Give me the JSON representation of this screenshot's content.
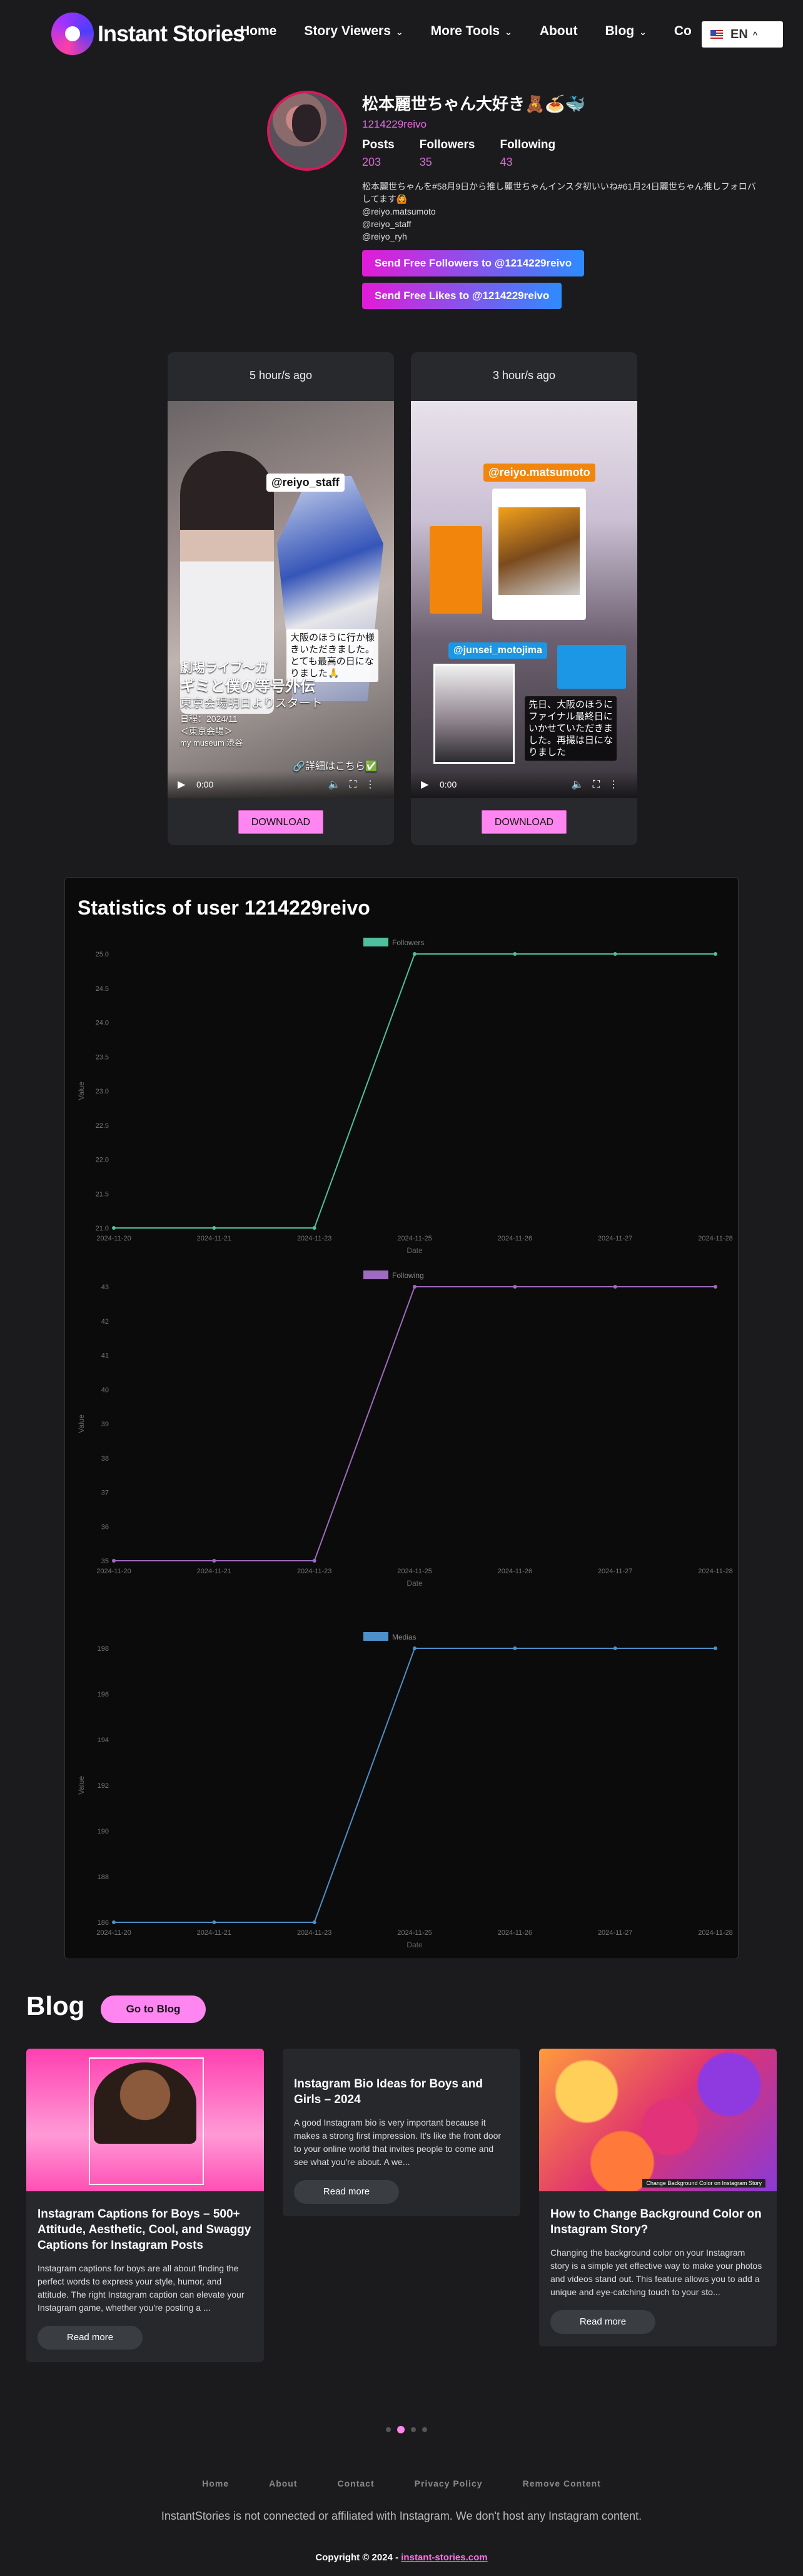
{
  "header": {
    "logo_text": "Instant Stories",
    "nav": [
      {
        "label": "Home",
        "dropdown": false
      },
      {
        "label": "Story Viewers",
        "dropdown": true
      },
      {
        "label": "More Tools",
        "dropdown": true
      },
      {
        "label": "About",
        "dropdown": false
      },
      {
        "label": "Blog",
        "dropdown": true
      },
      {
        "label": "Co",
        "dropdown": false
      }
    ],
    "language": "EN"
  },
  "profile": {
    "name": "松本麗世ちゃん大好き🧸🍝🐳",
    "username": "1214229reivo",
    "posts_label": "Posts",
    "posts": "203",
    "followers_label": "Followers",
    "followers": "35",
    "following_label": "Following",
    "following": "43",
    "bio_lines": [
      "松本麗世ちゃんを#58月9日から推し麗世ちゃんインスタ初いいね#61月24日麗世ちゃん推しフォロバしてます🙆",
      "@reiyo.matsumoto",
      "@reiyo_staff",
      "@reiyo_ryh"
    ],
    "cta_followers": "Send Free Followers to @1214229reivo",
    "cta_likes": "Send Free Likes to @1214229reivo"
  },
  "stories": [
    {
      "time": "5 hour/s ago",
      "tag": "@reiyo_staff",
      "overlay": "大阪のほうに行か様\nきいただきました。\nとても最高の日にな\nりました🙏",
      "caption_1": "劇場ライブ〜ガ",
      "caption_2": "ギミと僕の等号外伝",
      "caption_3": "東京会場明日よりスタート",
      "caption_4": "日程：2024/11",
      "caption_5": "＜東京会場＞",
      "caption_6": "my museum 渋谷",
      "detail_link": "🔗詳細はこちら✅",
      "player_time": "0:00",
      "download": "DOWNLOAD"
    },
    {
      "time": "3 hour/s ago",
      "tag": "@reiyo.matsumoto",
      "tag_2": "@junsei_motojima",
      "overlay": "先日、大阪のほうに\nファイナル最終日に\nいかせていただきま\nした。再撮は日にな\nりました",
      "player_time": "0:00",
      "download": "DOWNLOAD"
    }
  ],
  "statistics": {
    "title": "Statistics of user 1214229reivo",
    "charts": [
      {
        "name": "Followers",
        "color": "#4fbf9f",
        "x": [
          "2024-11-20",
          "2024-11-21",
          "2024-11-23",
          "2024-11-25",
          "2024-11-26",
          "2024-11-27",
          "2024-11-28"
        ],
        "y": [
          21.0,
          21.0,
          21.0,
          25.0,
          25.0,
          25.0,
          25.0
        ],
        "ylim": [
          21.0,
          25.0
        ],
        "yticks": [
          "21.0",
          "21.5",
          "22.0",
          "22.5",
          "23.0",
          "23.5",
          "24.0",
          "24.5",
          "25.0"
        ],
        "xlabel": "Date",
        "ylabel": "Value"
      },
      {
        "name": "Following",
        "color": "#9d6bbf",
        "x": [
          "2024-11-20",
          "2024-11-21",
          "2024-11-23",
          "2024-11-25",
          "2024-11-26",
          "2024-11-27",
          "2024-11-28"
        ],
        "y": [
          35,
          35,
          35,
          43,
          43,
          43,
          43
        ],
        "ylim": [
          35,
          43
        ],
        "yticks": [
          "35",
          "36",
          "37",
          "38",
          "39",
          "40",
          "41",
          "42",
          "43"
        ],
        "xlabel": "Date",
        "ylabel": "Value"
      },
      {
        "name": "Medias",
        "color": "#4d8fc8",
        "x": [
          "2024-11-20",
          "2024-11-21",
          "2024-11-23",
          "2024-11-25",
          "2024-11-26",
          "2024-11-27",
          "2024-11-28"
        ],
        "y": [
          186,
          186,
          186,
          198,
          198,
          198,
          198
        ],
        "ylim": [
          186,
          198
        ],
        "yticks": [
          "186",
          "188",
          "190",
          "192",
          "194",
          "196",
          "198"
        ],
        "xlabel": "Date",
        "ylabel": "Value"
      }
    ]
  },
  "chart_data": [
    {
      "type": "line",
      "title": "",
      "x": [
        "2024-11-20",
        "2024-11-21",
        "2024-11-23",
        "2024-11-25",
        "2024-11-26",
        "2024-11-27",
        "2024-11-28"
      ],
      "series": [
        {
          "name": "Followers",
          "values": [
            21,
            21,
            21,
            25,
            25,
            25,
            25
          ]
        }
      ],
      "xlabel": "Date",
      "ylabel": "Value",
      "ylim": [
        21,
        25
      ]
    },
    {
      "type": "line",
      "title": "",
      "x": [
        "2024-11-20",
        "2024-11-21",
        "2024-11-23",
        "2024-11-25",
        "2024-11-26",
        "2024-11-27",
        "2024-11-28"
      ],
      "series": [
        {
          "name": "Following",
          "values": [
            35,
            35,
            35,
            43,
            43,
            43,
            43
          ]
        }
      ],
      "xlabel": "Date",
      "ylabel": "Value",
      "ylim": [
        35,
        43
      ]
    },
    {
      "type": "line",
      "title": "",
      "x": [
        "2024-11-20",
        "2024-11-21",
        "2024-11-23",
        "2024-11-25",
        "2024-11-26",
        "2024-11-27",
        "2024-11-28"
      ],
      "series": [
        {
          "name": "Medias",
          "values": [
            186,
            186,
            186,
            198,
            198,
            198,
            198
          ]
        }
      ],
      "xlabel": "Date",
      "ylabel": "Value",
      "ylim": [
        186,
        198
      ]
    }
  ],
  "blog": {
    "title": "Blog",
    "button": "Go to Blog",
    "posts": [
      {
        "title": "Instagram Captions for Boys – 500+ Attitude, Aesthetic, Cool, and Swaggy Captions for Instagram Posts",
        "text": "Instagram captions for boys are all about finding the perfect words to express your style, humor, and attitude. The right Instagram caption can elevate your Instagram game, whether you're posting a ...",
        "read_more": "Read more"
      },
      {
        "title": "Instagram Bio Ideas for Boys and Girls – 2024",
        "text": "A good Instagram bio is very important because it makes a strong first impression. It's like the front door to your online world that invites people to come and see what you're about. A we...",
        "read_more": "Read more"
      },
      {
        "title": "How to Change Background Color on Instagram Story?",
        "text": "Changing the background color on your Instagram story is a simple yet effective way to make your photos and videos stand out. This feature allows you to add a unique and eye-catching touch to your sto...",
        "read_more": "Read more",
        "image_caption": "Change Background Color on Instagram Story"
      }
    ]
  },
  "footer": {
    "links": [
      "Home",
      "About",
      "Contact",
      "Privacy Policy",
      "Remove Content"
    ],
    "disclaimer": "InstantStories is not connected or affiliated with Instagram. We don't host any Instagram content.",
    "copyright_prefix": "Copyright © 2024 - ",
    "copyright_link": "instant-stories.com"
  }
}
